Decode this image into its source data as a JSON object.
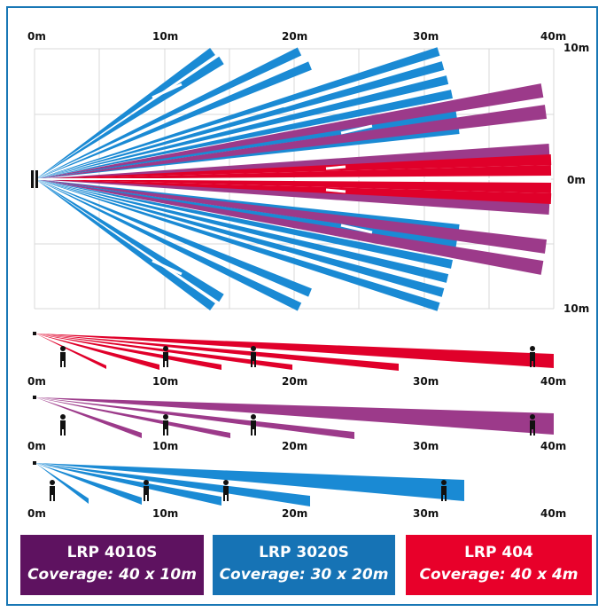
{
  "top_view": {
    "x_labels": [
      "0m",
      "10m",
      "20m",
      "30m",
      "40m"
    ],
    "y_labels": [
      "10m",
      "0m",
      "10m"
    ]
  },
  "side_views": [
    {
      "x_labels": [
        "0m",
        "10m",
        "20m",
        "30m",
        "40m"
      ],
      "color": "#e0002a"
    },
    {
      "x_labels": [
        "0m",
        "10m",
        "20m",
        "30m",
        "40m"
      ],
      "color": "#9c3a8a"
    },
    {
      "x_labels": [
        "0m",
        "10m",
        "20m",
        "30m",
        "40m"
      ],
      "color": "#1a8ad4"
    }
  ],
  "colors": {
    "blue": "#1a8ad4",
    "purple": "#9c3a8a",
    "red": "#e0002a",
    "frame": "#1877b5"
  },
  "legend": [
    {
      "title": "LRP 4010S",
      "coverage": "Coverage: 40 x 10m",
      "color": "#5e1260"
    },
    {
      "title": "LRP 3020S",
      "coverage": "Coverage: 30 x 20m",
      "color": "#1673b5"
    },
    {
      "title": "LRP 404",
      "coverage": "Coverage: 40 x 4m",
      "color": "#e8002a"
    }
  ],
  "icons": {
    "detector": "detector-icon",
    "person": "person-icon"
  }
}
